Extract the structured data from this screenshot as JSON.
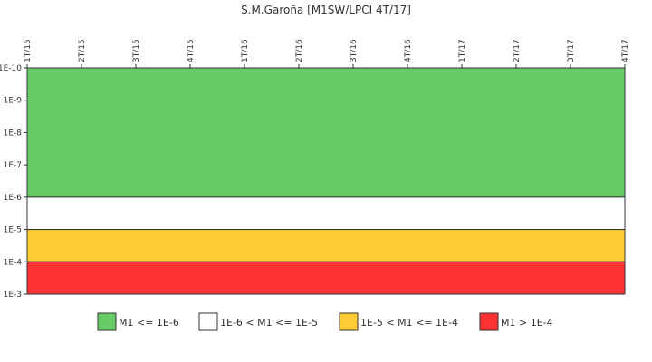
{
  "chart_data": {
    "type": "area",
    "title": "S.M.Garoña [M1SW/LPCI 4T/17]",
    "xlabel": "",
    "ylabel": "",
    "x_categories": [
      "1T/15",
      "2T/15",
      "3T/15",
      "4T/15",
      "1T/16",
      "2T/16",
      "3T/16",
      "4T/16",
      "1T/17",
      "2T/17",
      "3T/17",
      "4T/17"
    ],
    "y_scale": "log",
    "y_ticks": [
      "1E-10",
      "1E-9",
      "1E-8",
      "1E-7",
      "1E-6",
      "1E-5",
      "1E-4",
      "1E-3"
    ],
    "y_tick_values": [
      1e-10,
      1e-09,
      1e-08,
      1e-07,
      1e-06,
      1e-05,
      0.0001,
      0.001
    ],
    "ylim": [
      1e-10,
      0.001
    ],
    "y_inverted": true,
    "bands": [
      {
        "label": "M1 <= 1E-6",
        "from": 1e-10,
        "to": 1e-06,
        "color": "#66cc66"
      },
      {
        "label": "1E-6 < M1 <= 1E-5",
        "from": 1e-06,
        "to": 1e-05,
        "color": "#ffffff"
      },
      {
        "label": "1E-5 < M1 <= 1E-4",
        "from": 1e-05,
        "to": 0.0001,
        "color": "#ffcc33"
      },
      {
        "label": "M1 > 1E-4",
        "from": 0.0001,
        "to": 0.001,
        "color": "#ff3333"
      }
    ],
    "legend_position": "bottom",
    "grid": false
  }
}
